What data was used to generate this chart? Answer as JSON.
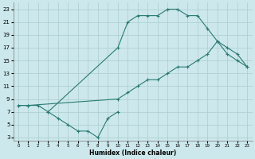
{
  "xlabel": "Humidex (Indice chaleur)",
  "background_color": "#cce8ec",
  "grid_color": "#aacccc",
  "line_color": "#2a7a72",
  "xlim": [
    -0.5,
    23.5
  ],
  "ylim": [
    2.5,
    24.0
  ],
  "xticks": [
    0,
    1,
    2,
    3,
    4,
    5,
    6,
    7,
    8,
    9,
    10,
    11,
    12,
    13,
    14,
    15,
    16,
    17,
    18,
    19,
    20,
    21,
    22,
    23
  ],
  "yticks": [
    3,
    5,
    7,
    9,
    11,
    13,
    15,
    17,
    19,
    21,
    23
  ],
  "line1_x": [
    0,
    1,
    2,
    3,
    10,
    11,
    12,
    13,
    14,
    15,
    16,
    17,
    18,
    19,
    20,
    21,
    22,
    23
  ],
  "line1_y": [
    8,
    8,
    8,
    7,
    17,
    21,
    22,
    22,
    22,
    23,
    23,
    22,
    22,
    20,
    18,
    16,
    15,
    14
  ],
  "line2_x": [
    0,
    1,
    10,
    11,
    12,
    13,
    14,
    15,
    16,
    17,
    18,
    19,
    20,
    21,
    22,
    23
  ],
  "line2_y": [
    8,
    8,
    9,
    10,
    11,
    12,
    12,
    13,
    14,
    14,
    15,
    16,
    18,
    17,
    16,
    14
  ],
  "line3_x": [
    3,
    4,
    5,
    6,
    7,
    8,
    9,
    10
  ],
  "line3_y": [
    7,
    6,
    5,
    4,
    4,
    3,
    6,
    7
  ]
}
